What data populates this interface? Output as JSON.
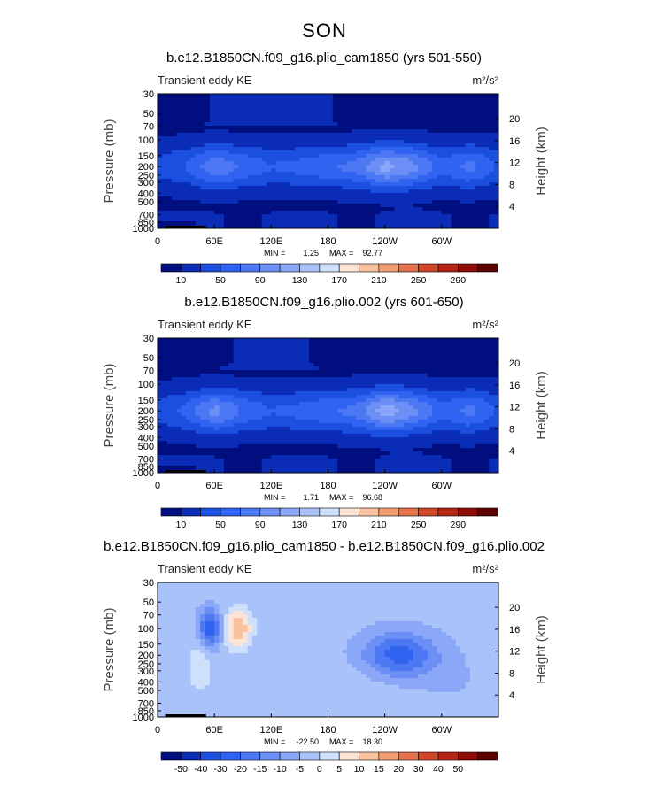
{
  "page": {
    "title": "SON"
  },
  "chart_data": [
    {
      "type": "heatmap",
      "title": "b.e12.B1850CN.f09_g16.plio_cam1850 (yrs 501-550)",
      "subtitle_left": "Transient eddy KE",
      "units": "m²/s²",
      "ylabel": "Pressure (mb)",
      "ylabel_right": "Height (km)",
      "xticks": [
        "0",
        "60E",
        "120E",
        "180",
        "120W",
        "60W"
      ],
      "yticks": [
        "30",
        "50",
        "70",
        "100",
        "150",
        "200",
        "250",
        "300",
        "400",
        "500",
        "700",
        "850",
        "1000"
      ],
      "yticks_right": [
        "20",
        "16",
        "12",
        "8",
        "4"
      ],
      "stats": {
        "min_label": "MIN =",
        "min": "1.25",
        "max_label": "MAX =",
        "max": "92.77"
      },
      "colorbar": {
        "labels": [
          "10",
          "50",
          "90",
          "130",
          "170",
          "210",
          "250",
          "290"
        ],
        "colors": [
          "#000e80",
          "#0a2cb6",
          "#1a4fe0",
          "#2f63f0",
          "#4d78f3",
          "#6b8ff5",
          "#8aa8f7",
          "#a9c3fa",
          "#cfe0fc",
          "#fde4d4",
          "#f9c3a2",
          "#f29d72",
          "#e5714a",
          "#cf4529",
          "#b22413",
          "#8b0d06",
          "#5c0000"
        ]
      },
      "levels": [
        10,
        20,
        30,
        40,
        50,
        60,
        70,
        80,
        90
      ],
      "fields": {
        "upper_rise": 6,
        "jet": [
          [
            0,
            15
          ],
          [
            30,
            22
          ],
          [
            60,
            40
          ],
          [
            90,
            30
          ],
          [
            120,
            22
          ],
          [
            150,
            25
          ],
          [
            180,
            30
          ],
          [
            210,
            35
          ],
          [
            240,
            55
          ],
          [
            270,
            45
          ],
          [
            300,
            25
          ],
          [
            330,
            35
          ],
          [
            360,
            20
          ]
        ]
      }
    },
    {
      "type": "heatmap",
      "title": "b.e12.B1850CN.f09_g16.plio.002 (yrs 601-650)",
      "subtitle_left": "Transient eddy KE",
      "units": "m²/s²",
      "ylabel": "Pressure (mb)",
      "ylabel_right": "Height (km)",
      "xticks": [
        "0",
        "60E",
        "120E",
        "180",
        "120W",
        "60W"
      ],
      "yticks": [
        "30",
        "50",
        "70",
        "100",
        "150",
        "200",
        "250",
        "300",
        "400",
        "500",
        "700",
        "850",
        "1000"
      ],
      "yticks_right": [
        "20",
        "16",
        "12",
        "8",
        "4"
      ],
      "stats": {
        "min_label": "MIN =",
        "min": "1.71",
        "max_label": "MAX =",
        "max": "96.68"
      },
      "colorbar": {
        "labels": [
          "10",
          "50",
          "90",
          "130",
          "170",
          "210",
          "250",
          "290"
        ],
        "colors": [
          "#000e80",
          "#0a2cb6",
          "#1a4fe0",
          "#2f63f0",
          "#4d78f3",
          "#6b8ff5",
          "#8aa8f7",
          "#a9c3fa",
          "#cfe0fc",
          "#fde4d4",
          "#f9c3a2",
          "#f29d72",
          "#e5714a",
          "#cf4529",
          "#b22413",
          "#8b0d06",
          "#5c0000"
        ]
      },
      "levels": [
        10,
        20,
        30,
        40,
        50,
        60,
        70,
        80,
        90
      ],
      "fields": {
        "upper_rise": 3,
        "jet": [
          [
            0,
            15
          ],
          [
            30,
            25
          ],
          [
            60,
            45
          ],
          [
            90,
            30
          ],
          [
            120,
            22
          ],
          [
            150,
            25
          ],
          [
            180,
            30
          ],
          [
            210,
            35
          ],
          [
            240,
            58
          ],
          [
            270,
            45
          ],
          [
            300,
            25
          ],
          [
            330,
            35
          ],
          [
            360,
            20
          ]
        ]
      }
    },
    {
      "type": "heatmap",
      "title": "b.e12.B1850CN.f09_g16.plio_cam1850 - b.e12.B1850CN.f09_g16.plio.002",
      "subtitle_left": "Transient eddy KE",
      "units": "m²/s²",
      "ylabel": "Pressure (mb)",
      "ylabel_right": "Height (km)",
      "xticks": [
        "0",
        "60E",
        "120E",
        "180",
        "120W",
        "60W"
      ],
      "yticks": [
        "30",
        "50",
        "70",
        "100",
        "150",
        "200",
        "250",
        "300",
        "400",
        "500",
        "700",
        "850",
        "1000"
      ],
      "yticks_right": [
        "20",
        "16",
        "12",
        "8",
        "4"
      ],
      "stats": {
        "min_label": "MIN =",
        "min": "-22.50",
        "max_label": "MAX =",
        "max": "18.30"
      },
      "colorbar": {
        "labels": [
          "-50",
          "-40",
          "-30",
          "-20",
          "-15",
          "-10",
          "-5",
          "0",
          "5",
          "10",
          "15",
          "20",
          "30",
          "40",
          "50"
        ],
        "colors": [
          "#000e80",
          "#0a2cb6",
          "#1a4fe0",
          "#2f63f0",
          "#4d78f3",
          "#6b8ff5",
          "#8aa8f7",
          "#a9c3fa",
          "#cfe0fc",
          "#fde4d4",
          "#f9c3a2",
          "#f29d72",
          "#e5714a",
          "#cf4529",
          "#b22413",
          "#8b0d06",
          "#5c0000"
        ]
      },
      "levels": [
        -20,
        -15,
        -10,
        -5,
        0,
        5,
        10,
        15
      ],
      "fields": {
        "features": [
          {
            "lon": 55,
            "p": 100,
            "amp": -22,
            "wlon": 12,
            "wlev": 0.1
          },
          {
            "lon": 85,
            "p": 100,
            "amp": 18,
            "wlon": 14,
            "wlev": 0.1
          },
          {
            "lon": 255,
            "p": 200,
            "amp": -20,
            "wlon": 40,
            "wlev": 0.12
          },
          {
            "lon": 45,
            "p": 200,
            "amp": 5,
            "wlon": 12,
            "wlev": 0.15
          }
        ]
      }
    }
  ]
}
